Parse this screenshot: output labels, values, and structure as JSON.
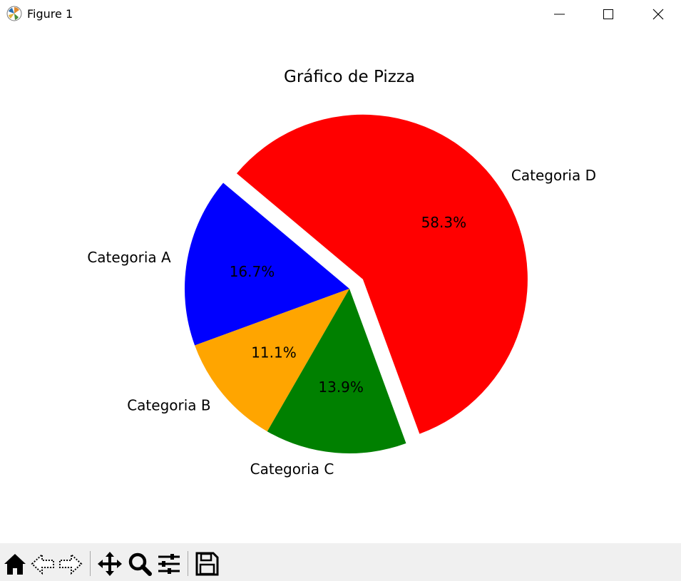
{
  "window": {
    "title": "Figure 1"
  },
  "icons": {
    "app": "matplotlib-logo-icon",
    "minimize": "minimize-icon",
    "maximize": "maximize-icon",
    "close": "close-icon"
  },
  "toolbar": {
    "buttons": [
      "home-icon",
      "back-arrow-icon",
      "forward-arrow-icon",
      "pan-move-icon",
      "zoom-magnifier-icon",
      "configure-subplots-icon",
      "save-floppy-icon"
    ]
  },
  "chart_data": {
    "type": "pie",
    "title": "Gráfico de Pizza",
    "categories": [
      "Categoria A",
      "Categoria B",
      "Categoria C",
      "Categoria D"
    ],
    "values": [
      16.7,
      11.1,
      13.9,
      58.3
    ],
    "labels": [
      "16.7%",
      "11.1%",
      "13.9%",
      "58.3%"
    ],
    "colors": [
      "#0000ff",
      "#ffa500",
      "#008000",
      "#ff0000"
    ],
    "explode": [
      0,
      0,
      0,
      0.1
    ],
    "start_angle_deg": 140,
    "direction": "counterclockwise"
  }
}
